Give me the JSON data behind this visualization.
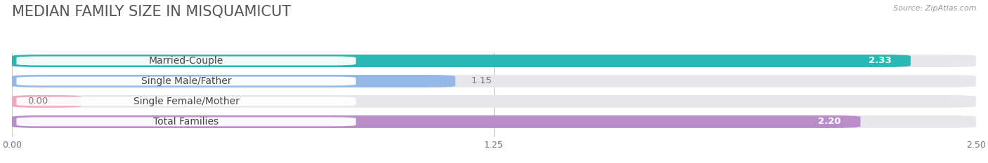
{
  "title": "MEDIAN FAMILY SIZE IN MISQUAMICUT",
  "source": "Source: ZipAtlas.com",
  "categories": [
    "Married-Couple",
    "Single Male/Father",
    "Single Female/Mother",
    "Total Families"
  ],
  "values": [
    2.33,
    1.15,
    0.0,
    2.2
  ],
  "bar_colors": [
    "#2ab8b5",
    "#95b8e8",
    "#f4a8bc",
    "#b98ec8"
  ],
  "value_inside": [
    true,
    false,
    false,
    true
  ],
  "value_text_colors": [
    "white",
    "#777777",
    "#777777",
    "white"
  ],
  "x_max": 2.5,
  "x_ticks": [
    0.0,
    1.25,
    2.5
  ],
  "x_tick_labels": [
    "0.00",
    "1.25",
    "2.50"
  ],
  "bg_color": "#ffffff",
  "bar_bg_color": "#e8e8ec",
  "title_fontsize": 15,
  "source_fontsize": 8,
  "label_fontsize": 10,
  "value_fontsize": 9.5,
  "bar_height": 0.62
}
